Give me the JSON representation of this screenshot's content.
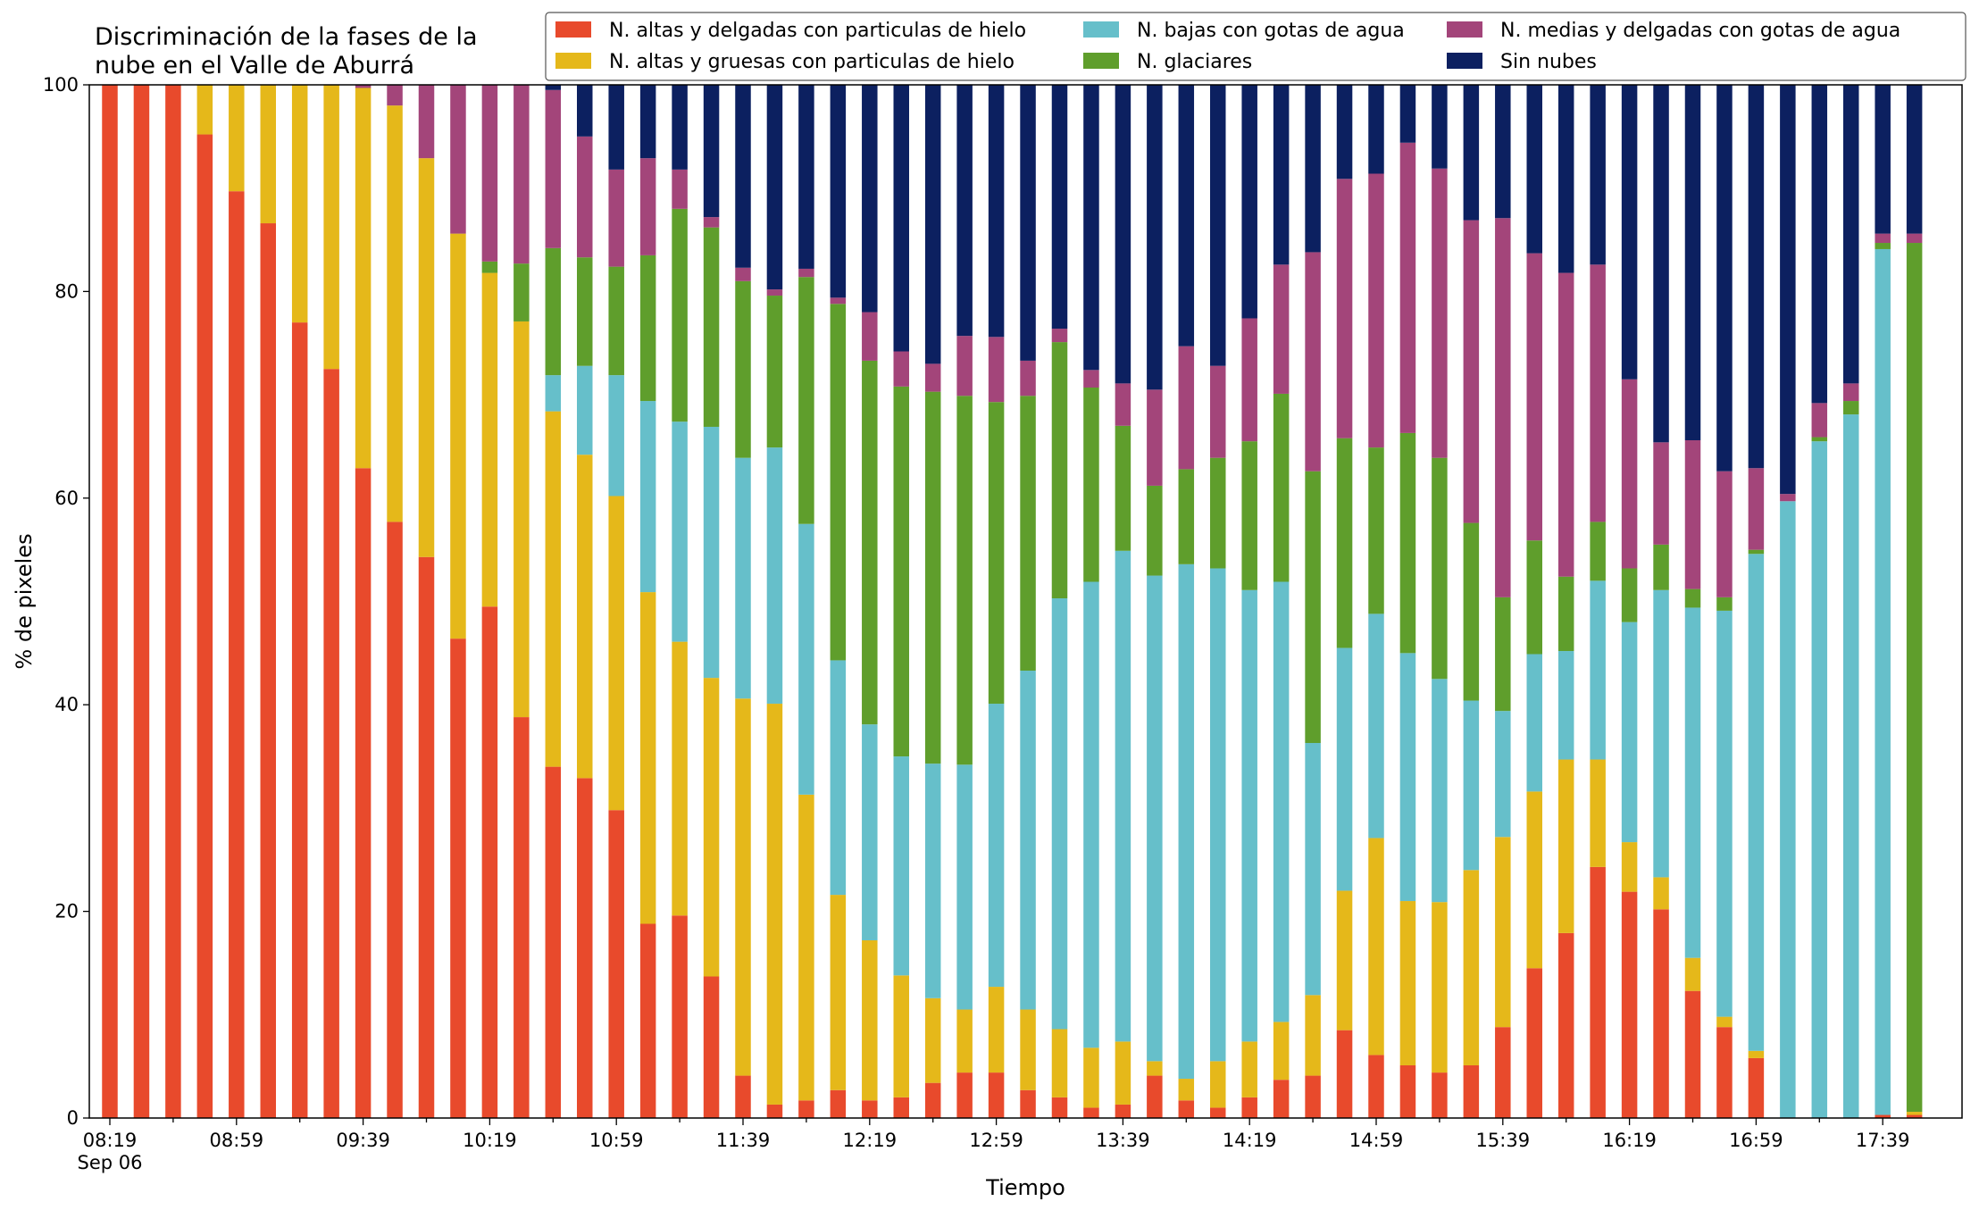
{
  "chart_data": {
    "type": "bar",
    "stacked": true,
    "title": [
      "Discriminación de la fases de la",
      "nube en el Valle de Aburrá"
    ],
    "xlabel": "Tiempo",
    "ylabel": "% de pixeles",
    "ylim": [
      0,
      100
    ],
    "yticks": [
      0,
      20,
      40,
      60,
      80,
      100
    ],
    "xtick_labels": [
      "08:19",
      "08:59",
      "09:39",
      "10:19",
      "10:59",
      "11:39",
      "12:19",
      "12:59",
      "13:39",
      "14:19",
      "14:59",
      "15:39",
      "16:19",
      "16:59",
      "17:39"
    ],
    "xtick_sublabel": "Sep 06",
    "legend_position": "top-right",
    "categories": [
      "08:19",
      "08:29",
      "08:39",
      "08:49",
      "08:59",
      "09:09",
      "09:19",
      "09:29",
      "09:39",
      "09:49",
      "09:59",
      "10:09",
      "10:19",
      "10:29",
      "10:39",
      "10:49",
      "10:59",
      "11:09",
      "11:19",
      "11:29",
      "11:39",
      "11:49",
      "11:59",
      "12:09",
      "12:19",
      "12:29",
      "12:39",
      "12:49",
      "12:59",
      "13:09",
      "13:19",
      "13:29",
      "13:39",
      "13:49",
      "13:59",
      "14:09",
      "14:19",
      "14:29",
      "14:39",
      "14:49",
      "14:59",
      "15:09",
      "15:19",
      "15:29",
      "15:39",
      "15:49",
      "15:59",
      "16:09",
      "16:19",
      "16:29",
      "16:39",
      "16:49",
      "16:59",
      "17:09",
      "17:19",
      "17:29",
      "17:39",
      "17:49"
    ],
    "series": [
      {
        "name": "N. altas y delgadas con particulas de hielo",
        "color": "#e84a2c",
        "values": [
          100,
          100,
          100,
          95.2,
          89.7,
          86.6,
          77,
          72.5,
          62.9,
          57.7,
          54.3,
          46.4,
          49.5,
          38.8,
          34,
          32.9,
          29.8,
          18.8,
          19.6,
          13.7,
          4.1,
          1.3,
          1.7,
          2.7,
          1.7,
          2.0,
          3.4,
          4.4,
          4.4,
          2.7,
          2.0,
          1.0,
          1.3,
          4.1,
          1.7,
          1.0,
          2.0,
          3.7,
          4.1,
          8.5,
          6.1,
          5.1,
          4.4,
          5.1,
          8.8,
          14.5,
          17.9,
          24.3,
          21.9,
          20.2,
          12.3,
          8.8,
          5.8,
          0,
          0,
          0,
          0.3,
          0.3
        ]
      },
      {
        "name": "N. altas y gruesas con particulas de hielo",
        "color": "#e5b81a",
        "values": [
          0,
          0,
          0,
          4.8,
          10.3,
          13.4,
          23,
          27.5,
          36.8,
          40.3,
          38.6,
          39.2,
          32.3,
          38.3,
          34.4,
          31.3,
          30.4,
          32.1,
          26.5,
          28.9,
          36.5,
          38.8,
          29.6,
          18.9,
          15.5,
          11.8,
          8.2,
          6.1,
          8.3,
          7.8,
          6.6,
          5.8,
          6.1,
          1.4,
          2.1,
          4.5,
          5.4,
          5.6,
          7.8,
          13.5,
          21.0,
          15.9,
          16.5,
          18.9,
          18.4,
          17.1,
          16.8,
          10.4,
          4.8,
          3.1,
          3.2,
          1.0,
          0.7,
          0,
          0,
          0,
          0,
          0.3
        ]
      },
      {
        "name": "N. bajas con gotas de agua",
        "color": "#66bfca",
        "values": [
          0,
          0,
          0,
          0,
          0,
          0,
          0,
          0,
          0,
          0,
          0,
          0,
          0,
          0,
          3.5,
          8.6,
          11.7,
          18.5,
          21.3,
          24.3,
          23.3,
          24.8,
          26.2,
          22.7,
          20.9,
          21.2,
          22.7,
          23.7,
          27.4,
          32.8,
          41.7,
          45.1,
          47.5,
          47.0,
          49.8,
          47.7,
          43.7,
          42.6,
          24.4,
          23.5,
          21.7,
          24.0,
          21.6,
          16.4,
          12.2,
          13.3,
          10.5,
          17.3,
          21.3,
          27.8,
          33.9,
          39.3,
          48.1,
          59.7,
          65.5,
          68.1,
          83.8,
          0
        ]
      },
      {
        "name": "N. glaciares",
        "color": "#5f9e2c",
        "values": [
          0,
          0,
          0,
          0,
          0,
          0,
          0,
          0,
          0,
          0,
          0,
          0,
          1.1,
          5.6,
          12.3,
          10.5,
          10.5,
          14.1,
          20.6,
          19.3,
          17.1,
          14.7,
          23.9,
          34.5,
          35.2,
          35.8,
          36.0,
          35.7,
          29.2,
          26.6,
          24.8,
          18.8,
          12.1,
          8.7,
          9.2,
          10.7,
          14.4,
          18.2,
          26.3,
          20.3,
          16.1,
          21.3,
          21.4,
          17.2,
          11.0,
          11.0,
          7.2,
          5.7,
          5.2,
          4.4,
          1.8,
          1.3,
          0.4,
          0,
          0.4,
          1.3,
          0.6,
          84.1
        ]
      },
      {
        "name": "N. medias y delgadas con gotas de agua",
        "color": "#a3457a",
        "values": [
          0,
          0,
          0,
          0,
          0,
          0,
          0,
          0,
          0.3,
          2.0,
          7.1,
          14.4,
          17.1,
          17.3,
          15.3,
          11.7,
          9.4,
          9.4,
          3.8,
          1.0,
          1.3,
          0.6,
          0.8,
          0.6,
          4.7,
          3.4,
          2.7,
          5.8,
          6.3,
          3.4,
          1.3,
          1.7,
          4.1,
          9.3,
          11.9,
          8.9,
          11.9,
          12.5,
          21.2,
          25.1,
          26.5,
          28.1,
          28.0,
          29.3,
          36.7,
          27.8,
          29.4,
          24.9,
          18.3,
          9.9,
          14.4,
          12.2,
          7.9,
          0.7,
          3.3,
          1.7,
          0.9,
          0.9
        ]
      },
      {
        "name": "Sin nubes",
        "color": "#0c2060",
        "values": [
          0,
          0,
          0,
          0,
          0,
          0,
          0,
          0,
          0,
          0,
          0,
          0,
          0,
          0,
          0.5,
          5.0,
          8.2,
          7.1,
          8.2,
          12.8,
          17.7,
          19.8,
          17.8,
          20.6,
          22.0,
          25.8,
          27.0,
          24.3,
          24.4,
          26.7,
          23.6,
          27.6,
          28.9,
          29.5,
          25.3,
          27.2,
          22.6,
          17.4,
          16.2,
          9.1,
          8.6,
          5.6,
          8.1,
          13.1,
          12.9,
          16.3,
          18.2,
          17.4,
          28.5,
          34.6,
          34.4,
          37.4,
          37.1,
          39.6,
          30.8,
          28.9,
          14.4,
          14.4
        ]
      }
    ]
  }
}
